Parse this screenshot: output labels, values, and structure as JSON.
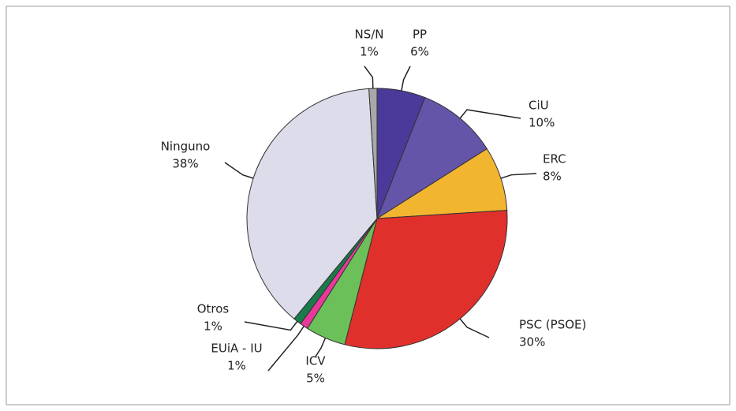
{
  "chart_data": {
    "type": "pie",
    "categories": [
      "PP",
      "CiU",
      "ERC",
      "PSC (PSOE)",
      "ICV",
      "EUiA - IU",
      "Otros",
      "Ninguno",
      "NS/N"
    ],
    "values": [
      6,
      10,
      8,
      30,
      5,
      1,
      1,
      38,
      1
    ],
    "value_labels": [
      "6%",
      "10%",
      "8%",
      "30%",
      "5%",
      "1%",
      "1%",
      "38%",
      "1%"
    ],
    "colors": [
      "#4b3a9a",
      "#6455a8",
      "#f2b530",
      "#e0302c",
      "#6cc05a",
      "#e8399a",
      "#1a7a4a",
      "#dcdcea",
      "#a8a8a8"
    ]
  }
}
